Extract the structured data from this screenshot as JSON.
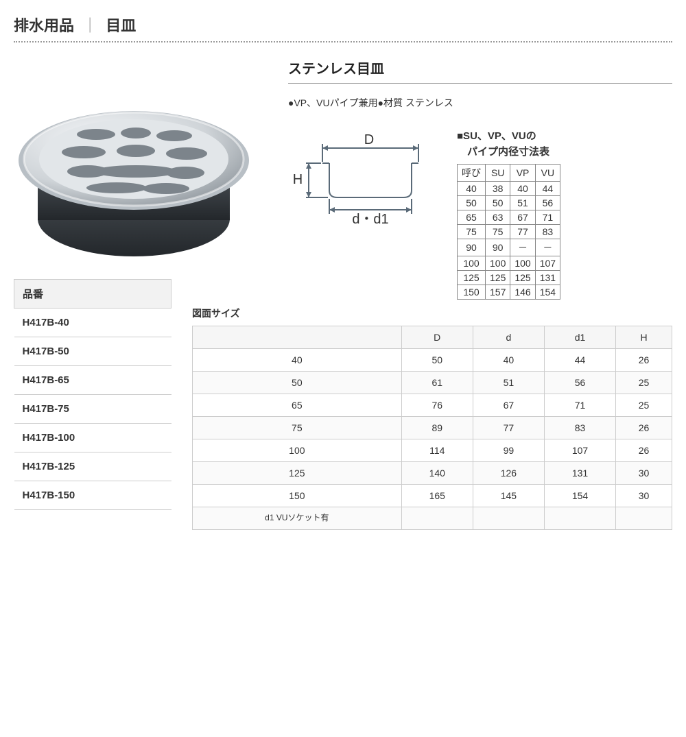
{
  "header": {
    "category": "排水用品",
    "divider": "｜",
    "sub": "目皿"
  },
  "product": {
    "title": "ステンレス目皿",
    "notes": "●VP、VUパイプ兼用●材質 ステンレス"
  },
  "diagram": {
    "label_D": "D",
    "label_H": "H",
    "label_dd1": "d・d1",
    "stroke": "#5a6a78",
    "text_color": "#333333"
  },
  "product_image": {
    "outer_ring": "#c8ccd0",
    "plate": "#d8dcdf",
    "slot": "#7c848b",
    "base": "#3a3f44",
    "highlight": "#f2f4f6"
  },
  "pipe_table": {
    "title_line1": "■SU、VP、VUの",
    "title_line2": "　パイプ内径寸法表",
    "headers": [
      "呼び",
      "SU",
      "VP",
      "VU"
    ],
    "rows": [
      [
        "40",
        "38",
        "40",
        "44"
      ],
      [
        "50",
        "50",
        "51",
        "56"
      ],
      [
        "65",
        "63",
        "67",
        "71"
      ],
      [
        "75",
        "75",
        "77",
        "83"
      ],
      [
        "90",
        "90",
        "－",
        "－"
      ],
      [
        "100",
        "100",
        "100",
        "107"
      ],
      [
        "125",
        "125",
        "125",
        "131"
      ],
      [
        "150",
        "157",
        "146",
        "154"
      ]
    ]
  },
  "parts": {
    "header": "品番",
    "rows": [
      "H417B-40",
      "H417B-50",
      "H417B-65",
      "H417B-75",
      "H417B-100",
      "H417B-125",
      "H417B-150"
    ]
  },
  "sizes": {
    "title": "図面サイズ",
    "headers": [
      "",
      "D",
      "d",
      "d1",
      "H"
    ],
    "rows": [
      [
        "40",
        "50",
        "40",
        "44",
        "26"
      ],
      [
        "50",
        "61",
        "51",
        "56",
        "25"
      ],
      [
        "65",
        "76",
        "67",
        "71",
        "25"
      ],
      [
        "75",
        "89",
        "77",
        "83",
        "26"
      ],
      [
        "100",
        "114",
        "99",
        "107",
        "26"
      ],
      [
        "125",
        "140",
        "126",
        "131",
        "30"
      ],
      [
        "150",
        "165",
        "145",
        "154",
        "30"
      ]
    ],
    "footnote": "d1 VUソケット有"
  }
}
